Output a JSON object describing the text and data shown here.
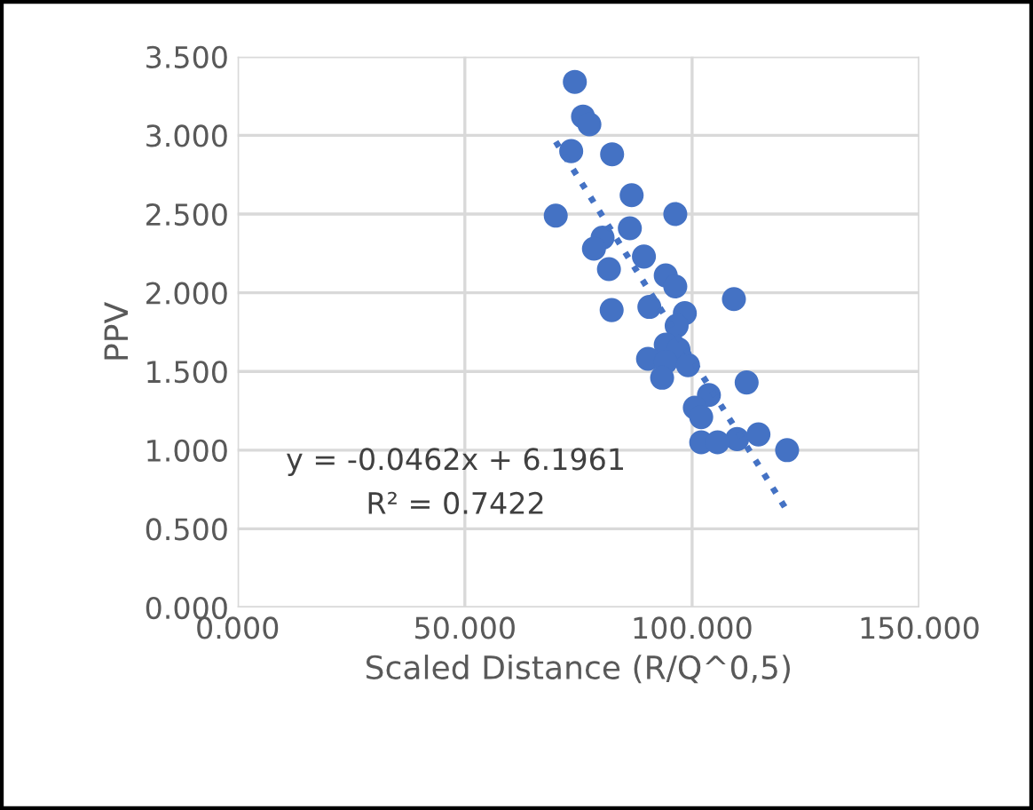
{
  "chart_data": {
    "type": "scatter",
    "xlabel": "Scaled Distance (R/Q^0,5)",
    "ylabel": "PPV",
    "xlim": [
      0,
      150
    ],
    "ylim": [
      0,
      3.5
    ],
    "xticks": [
      {
        "value": 0,
        "label": "0.000"
      },
      {
        "value": 50,
        "label": "50.000"
      },
      {
        "value": 100,
        "label": "100.000"
      },
      {
        "value": 150,
        "label": "150.000"
      }
    ],
    "yticks": [
      {
        "value": 0,
        "label": "0.000"
      },
      {
        "value": 0.5,
        "label": "0.500"
      },
      {
        "value": 1,
        "label": "1.000"
      },
      {
        "value": 1.5,
        "label": "1.500"
      },
      {
        "value": 2,
        "label": "2.000"
      },
      {
        "value": 2.5,
        "label": "2.500"
      },
      {
        "value": 3,
        "label": "3.000"
      },
      {
        "value": 3.5,
        "label": "3.500"
      }
    ],
    "grid": true,
    "annotations": [
      "y = -0.0462x + 6.1961",
      "R² = 0.7422"
    ],
    "series": [
      {
        "color": "#4472c4",
        "marker": "circle",
        "x": [
          74.2,
          76.0,
          77.4,
          73.4,
          82.4,
          86.7,
          70.0,
          96.3,
          86.3,
          80.3,
          78.4,
          89.4,
          81.7,
          94.2,
          96.3,
          109.2,
          82.3,
          90.6,
          98.4,
          96.6,
          94.2,
          97.0,
          90.3,
          94.2,
          99.1,
          93.4,
          112.0,
          103.7,
          100.6,
          102.0,
          102.0,
          109.9,
          114.6,
          105.6,
          120.9
        ],
        "values": [
          3.34,
          3.12,
          3.07,
          2.9,
          2.88,
          2.62,
          2.49,
          2.5,
          2.41,
          2.35,
          2.28,
          2.23,
          2.15,
          2.11,
          2.04,
          1.96,
          1.89,
          1.91,
          1.87,
          1.79,
          1.67,
          1.64,
          1.58,
          1.56,
          1.54,
          1.46,
          1.43,
          1.35,
          1.27,
          1.21,
          1.05,
          1.07,
          1.1,
          1.05,
          1.0
        ]
      },
      {
        "type": "line",
        "color": "#4472c4",
        "line_style": "dotted",
        "marker": "none",
        "x": [
          70,
          121
        ],
        "values": [
          2.96,
          0.61
        ]
      }
    ]
  }
}
